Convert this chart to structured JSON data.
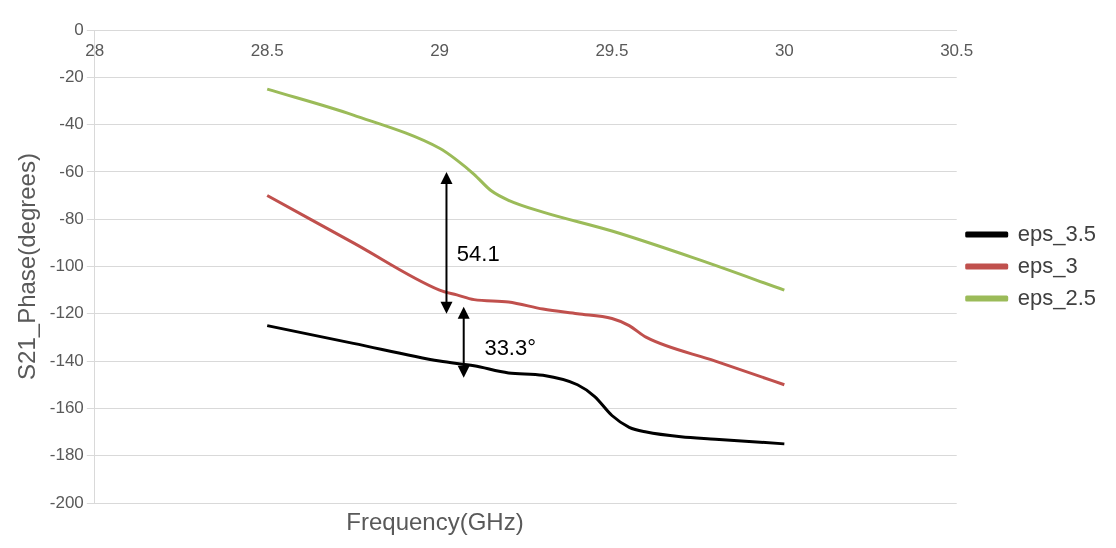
{
  "chart_data": {
    "type": "line",
    "xlabel": "Frequency(GHz)",
    "ylabel": "S21_Phase(degrees)",
    "xlim": [
      28,
      30.5
    ],
    "xticks": [
      28,
      28.5,
      29,
      29.5,
      30,
      30.5
    ],
    "ylim": [
      -200,
      0
    ],
    "yticks": [
      -200,
      -180,
      -160,
      -140,
      -120,
      -100,
      -80,
      -60,
      -40,
      -20,
      0
    ],
    "grid": "y",
    "legend": "right",
    "line_style": "solid",
    "marker": "none",
    "series": [
      {
        "name": "eps_3.5",
        "color": "#000000",
        "x": [
          28.5,
          28.75,
          29,
          29.1,
          29.2,
          29.3,
          29.4,
          29.45,
          29.5,
          29.55,
          29.6,
          29.7,
          29.8,
          30
        ],
        "values": [
          -125,
          -132.5,
          -140,
          -142,
          -145,
          -146,
          -150,
          -155,
          -163,
          -168,
          -170,
          -172,
          -173,
          -175
        ]
      },
      {
        "name": "eps_3",
        "color": "#c0504d",
        "x": [
          28.5,
          28.75,
          29,
          29.05,
          29.1,
          29.2,
          29.3,
          29.4,
          29.5,
          29.55,
          29.6,
          29.8,
          30
        ],
        "values": [
          -70,
          -90,
          -110,
          -112,
          -114,
          -115,
          -118,
          -120,
          -122,
          -125,
          -130,
          -140,
          -150
        ]
      },
      {
        "name": "eps_2.5",
        "color": "#9bbb59",
        "x": [
          28.5,
          28.75,
          29,
          29.05,
          29.1,
          29.15,
          29.2,
          29.3,
          29.5,
          29.75,
          30
        ],
        "values": [
          -25,
          -36,
          -50,
          -55,
          -61,
          -68,
          -72,
          -77,
          -85,
          -97,
          -110
        ]
      }
    ],
    "annotations": [
      "54.1",
      "33.3°"
    ]
  }
}
